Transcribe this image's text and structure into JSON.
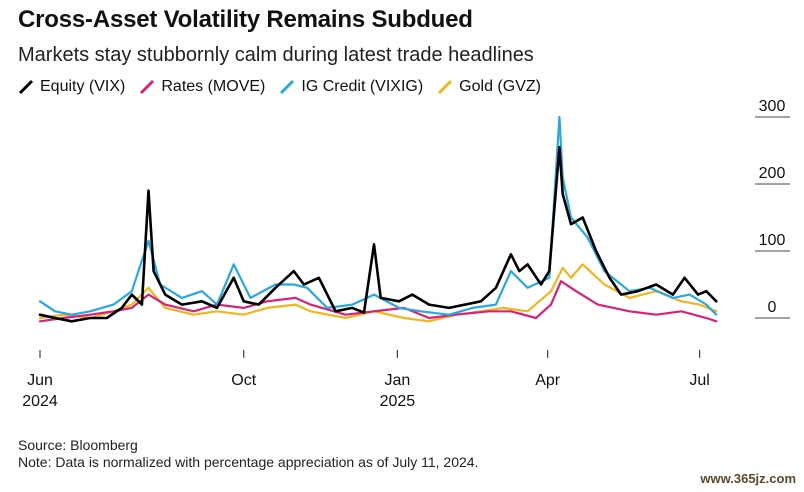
{
  "title": "Cross-Asset Volatility Remains Subdued",
  "subtitle": "Markets stay stubbornly calm during latest trade headlines",
  "footer": {
    "source": "Source: Bloomberg",
    "note": "Note: Data is normalized with percentage appreciation as of July 11, 2024."
  },
  "watermark": "www.365jz.com",
  "chart_data": {
    "type": "line",
    "x_axis": {
      "ticks": [
        {
          "date": "2024-06-01",
          "label": "Jun",
          "year": "2024"
        },
        {
          "date": "2024-10-01",
          "label": "Oct",
          "year": ""
        },
        {
          "date": "2025-01-01",
          "label": "Jan",
          "year": "2025"
        },
        {
          "date": "2025-04-01",
          "label": "Apr",
          "year": ""
        },
        {
          "date": "2025-07-01",
          "label": "Jul",
          "year": ""
        }
      ],
      "range": [
        "2024-06-01",
        "2025-07-12"
      ]
    },
    "y_axis": {
      "ticks": [
        "300",
        "200",
        "100",
        "0"
      ],
      "tick_values": [
        300,
        200,
        100,
        0
      ],
      "range": [
        -60,
        310
      ]
    },
    "legend_position": "top-left",
    "series": [
      {
        "name": "Equity (VIX)",
        "color": "#000000",
        "points": [
          [
            "2024-06-01",
            5
          ],
          [
            "2024-06-10",
            0
          ],
          [
            "2024-06-20",
            -5
          ],
          [
            "2024-07-01",
            0
          ],
          [
            "2024-07-11",
            0
          ],
          [
            "2024-07-20",
            15
          ],
          [
            "2024-07-26",
            35
          ],
          [
            "2024-08-01",
            20
          ],
          [
            "2024-08-05",
            190
          ],
          [
            "2024-08-08",
            70
          ],
          [
            "2024-08-15",
            35
          ],
          [
            "2024-08-25",
            20
          ],
          [
            "2024-09-06",
            25
          ],
          [
            "2024-09-15",
            15
          ],
          [
            "2024-09-25",
            60
          ],
          [
            "2024-10-01",
            25
          ],
          [
            "2024-10-10",
            20
          ],
          [
            "2024-10-20",
            45
          ],
          [
            "2024-10-31",
            70
          ],
          [
            "2024-11-06",
            50
          ],
          [
            "2024-11-15",
            60
          ],
          [
            "2024-11-25",
            10
          ],
          [
            "2024-12-05",
            15
          ],
          [
            "2024-12-12",
            8
          ],
          [
            "2024-12-18",
            110
          ],
          [
            "2024-12-22",
            30
          ],
          [
            "2025-01-02",
            25
          ],
          [
            "2025-01-10",
            35
          ],
          [
            "2025-01-20",
            20
          ],
          [
            "2025-02-01",
            15
          ],
          [
            "2025-02-20",
            25
          ],
          [
            "2025-03-01",
            45
          ],
          [
            "2025-03-10",
            95
          ],
          [
            "2025-03-15",
            70
          ],
          [
            "2025-03-20",
            80
          ],
          [
            "2025-03-28",
            50
          ],
          [
            "2025-04-02",
            70
          ],
          [
            "2025-04-08",
            255
          ],
          [
            "2025-04-10",
            185
          ],
          [
            "2025-04-15",
            140
          ],
          [
            "2025-04-22",
            150
          ],
          [
            "2025-04-30",
            100
          ],
          [
            "2025-05-08",
            60
          ],
          [
            "2025-05-15",
            35
          ],
          [
            "2025-05-25",
            40
          ],
          [
            "2025-06-05",
            50
          ],
          [
            "2025-06-15",
            35
          ],
          [
            "2025-06-22",
            60
          ],
          [
            "2025-06-30",
            35
          ],
          [
            "2025-07-05",
            40
          ],
          [
            "2025-07-11",
            25
          ]
        ]
      },
      {
        "name": "Rates (MOVE)",
        "color": "#d6237a",
        "points": [
          [
            "2024-06-01",
            -5
          ],
          [
            "2024-06-15",
            0
          ],
          [
            "2024-07-01",
            5
          ],
          [
            "2024-07-15",
            10
          ],
          [
            "2024-07-26",
            15
          ],
          [
            "2024-08-05",
            35
          ],
          [
            "2024-08-15",
            20
          ],
          [
            "2024-09-01",
            10
          ],
          [
            "2024-09-15",
            20
          ],
          [
            "2024-10-01",
            15
          ],
          [
            "2024-10-15",
            25
          ],
          [
            "2024-11-01",
            30
          ],
          [
            "2024-11-10",
            20
          ],
          [
            "2024-12-01",
            5
          ],
          [
            "2024-12-18",
            10
          ],
          [
            "2025-01-05",
            15
          ],
          [
            "2025-01-20",
            0
          ],
          [
            "2025-02-05",
            5
          ],
          [
            "2025-02-25",
            10
          ],
          [
            "2025-03-10",
            10
          ],
          [
            "2025-03-25",
            0
          ],
          [
            "2025-04-03",
            20
          ],
          [
            "2025-04-09",
            55
          ],
          [
            "2025-04-18",
            40
          ],
          [
            "2025-05-01",
            20
          ],
          [
            "2025-05-20",
            10
          ],
          [
            "2025-06-05",
            5
          ],
          [
            "2025-06-20",
            10
          ],
          [
            "2025-07-05",
            0
          ],
          [
            "2025-07-11",
            -5
          ]
        ]
      },
      {
        "name": "IG Credit (VIXIG)",
        "color": "#29a8e0",
        "points": [
          [
            "2024-06-01",
            25
          ],
          [
            "2024-06-10",
            10
          ],
          [
            "2024-06-20",
            5
          ],
          [
            "2024-07-01",
            10
          ],
          [
            "2024-07-15",
            20
          ],
          [
            "2024-07-26",
            40
          ],
          [
            "2024-08-05",
            115
          ],
          [
            "2024-08-12",
            50
          ],
          [
            "2024-08-25",
            30
          ],
          [
            "2024-09-06",
            40
          ],
          [
            "2024-09-15",
            20
          ],
          [
            "2024-09-25",
            80
          ],
          [
            "2024-10-05",
            30
          ],
          [
            "2024-10-20",
            50
          ],
          [
            "2024-10-31",
            50
          ],
          [
            "2024-11-08",
            45
          ],
          [
            "2024-11-20",
            15
          ],
          [
            "2024-12-05",
            20
          ],
          [
            "2024-12-18",
            35
          ],
          [
            "2025-01-02",
            15
          ],
          [
            "2025-01-15",
            10
          ],
          [
            "2025-02-01",
            5
          ],
          [
            "2025-02-15",
            15
          ],
          [
            "2025-03-01",
            20
          ],
          [
            "2025-03-10",
            70
          ],
          [
            "2025-03-20",
            45
          ],
          [
            "2025-04-02",
            60
          ],
          [
            "2025-04-08",
            300
          ],
          [
            "2025-04-10",
            210
          ],
          [
            "2025-04-15",
            150
          ],
          [
            "2025-04-25",
            120
          ],
          [
            "2025-05-05",
            70
          ],
          [
            "2025-05-20",
            40
          ],
          [
            "2025-06-01",
            45
          ],
          [
            "2025-06-15",
            30
          ],
          [
            "2025-06-25",
            35
          ],
          [
            "2025-07-05",
            20
          ],
          [
            "2025-07-11",
            5
          ]
        ]
      },
      {
        "name": "Gold (GVZ)",
        "color": "#f2b51d",
        "points": [
          [
            "2024-06-01",
            0
          ],
          [
            "2024-06-15",
            5
          ],
          [
            "2024-07-01",
            0
          ],
          [
            "2024-07-15",
            10
          ],
          [
            "2024-07-26",
            20
          ],
          [
            "2024-08-05",
            45
          ],
          [
            "2024-08-15",
            15
          ],
          [
            "2024-09-01",
            5
          ],
          [
            "2024-09-15",
            10
          ],
          [
            "2024-10-01",
            5
          ],
          [
            "2024-10-15",
            15
          ],
          [
            "2024-11-01",
            20
          ],
          [
            "2024-11-10",
            10
          ],
          [
            "2024-12-01",
            0
          ],
          [
            "2024-12-18",
            10
          ],
          [
            "2025-01-05",
            0
          ],
          [
            "2025-01-20",
            -5
          ],
          [
            "2025-02-05",
            5
          ],
          [
            "2025-02-20",
            10
          ],
          [
            "2025-03-05",
            15
          ],
          [
            "2025-03-20",
            10
          ],
          [
            "2025-04-03",
            40
          ],
          [
            "2025-04-10",
            75
          ],
          [
            "2025-04-15",
            60
          ],
          [
            "2025-04-22",
            80
          ],
          [
            "2025-05-05",
            50
          ],
          [
            "2025-05-20",
            30
          ],
          [
            "2025-06-05",
            40
          ],
          [
            "2025-06-20",
            25
          ],
          [
            "2025-07-01",
            20
          ],
          [
            "2025-07-11",
            10
          ]
        ]
      }
    ]
  }
}
